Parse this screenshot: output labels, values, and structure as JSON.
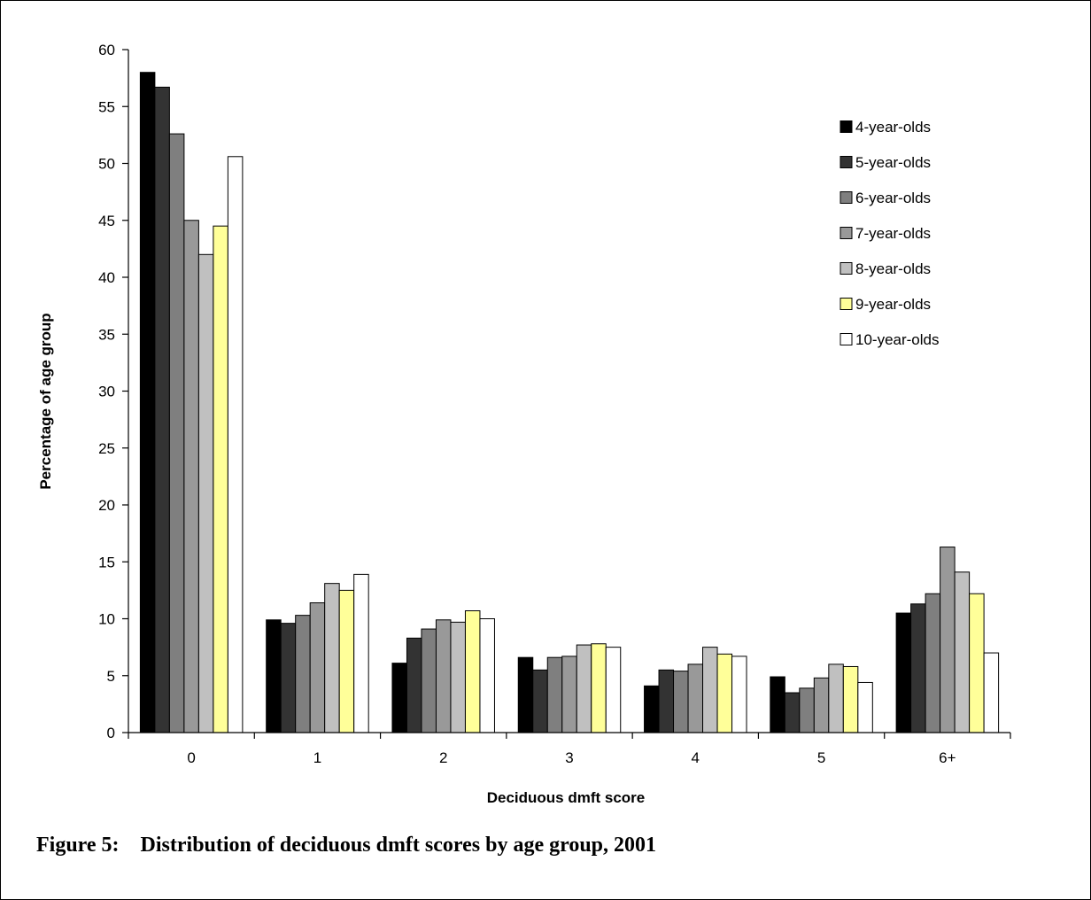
{
  "caption": "Figure 5:    Distribution of deciduous dmft scores by age group, 2001",
  "chart_data": {
    "type": "bar",
    "title": "",
    "xlabel": "Deciduous dmft score",
    "ylabel": "Percentage of age group",
    "ylim": [
      0,
      60
    ],
    "yticks": [
      0,
      5,
      10,
      15,
      20,
      25,
      30,
      35,
      40,
      45,
      50,
      55,
      60
    ],
    "categories": [
      "0",
      "1",
      "2",
      "3",
      "4",
      "5",
      "6+"
    ],
    "grid": false,
    "legend_position": "top-right",
    "series": [
      {
        "name": "4-year-olds",
        "color": "#000000",
        "values": [
          58.0,
          9.9,
          6.1,
          6.6,
          4.1,
          4.9,
          10.5
        ]
      },
      {
        "name": "5-year-olds",
        "color": "#333333",
        "values": [
          56.7,
          9.6,
          8.3,
          5.5,
          5.5,
          3.5,
          11.3
        ]
      },
      {
        "name": "6-year-olds",
        "color": "#7f7f7f",
        "values": [
          52.6,
          10.3,
          9.1,
          6.6,
          5.4,
          3.9,
          12.2
        ]
      },
      {
        "name": "7-year-olds",
        "color": "#999999",
        "values": [
          45.0,
          11.4,
          9.9,
          6.7,
          6.0,
          4.8,
          16.3
        ]
      },
      {
        "name": "8-year-olds",
        "color": "#c0c0c0",
        "values": [
          42.0,
          13.1,
          9.7,
          7.7,
          7.5,
          6.0,
          14.1
        ]
      },
      {
        "name": "9-year-olds",
        "color": "#ffff99",
        "values": [
          44.5,
          12.5,
          10.7,
          7.8,
          6.9,
          5.8,
          12.2
        ]
      },
      {
        "name": "10-year-olds",
        "color": "#ffffff",
        "values": [
          50.6,
          13.9,
          10.0,
          7.5,
          6.7,
          4.4,
          7.0
        ]
      }
    ]
  }
}
